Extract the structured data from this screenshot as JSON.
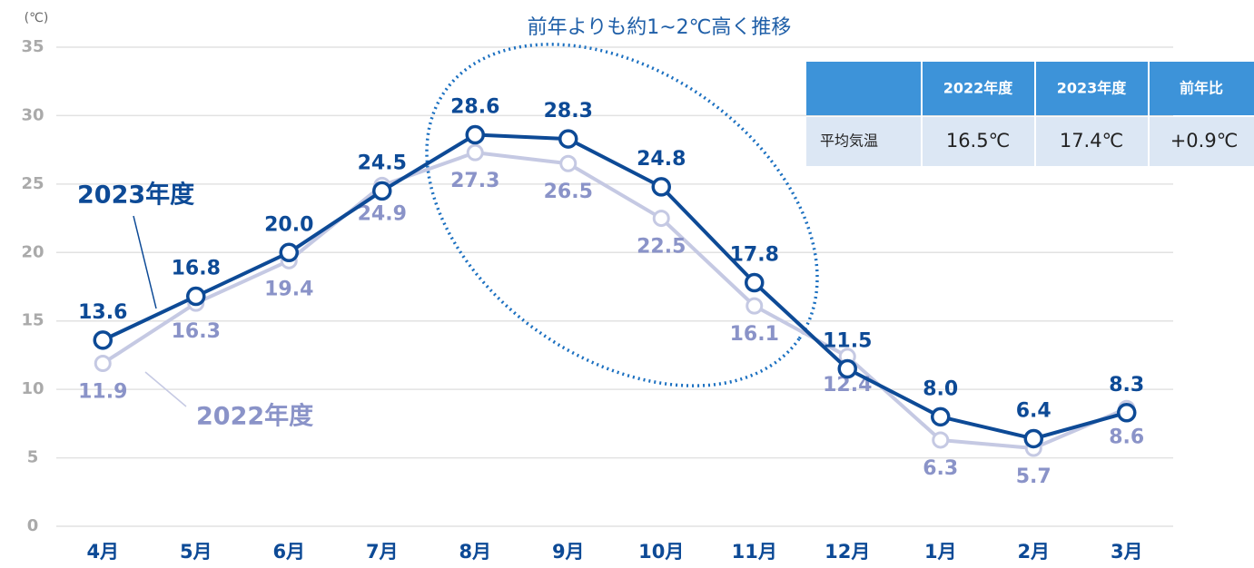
{
  "chart_data": {
    "type": "line",
    "title": "前年よりも約1~2℃高く推移",
    "y_label": "(℃)",
    "categories": [
      "4月",
      "5月",
      "6月",
      "7月",
      "8月",
      "9月",
      "10月",
      "11月",
      "12月",
      "1月",
      "2月",
      "3月"
    ],
    "series": [
      {
        "name": "2023年度",
        "color": "#0d4a96",
        "values": [
          13.6,
          16.8,
          20.0,
          24.5,
          28.6,
          28.3,
          24.8,
          17.8,
          11.5,
          8.0,
          6.4,
          8.3
        ],
        "value_labels": [
          "13.6",
          "16.8",
          "20.0",
          "24.5",
          "28.6",
          "28.3",
          "24.8",
          "17.8",
          "11.5",
          "8.0",
          "6.4",
          "8.3"
        ]
      },
      {
        "name": "2022年度",
        "color": "#c5c9e3",
        "label_color": "#8a93c8",
        "values": [
          11.9,
          16.3,
          19.4,
          24.9,
          27.3,
          26.5,
          22.5,
          16.1,
          12.4,
          6.3,
          5.7,
          8.6
        ],
        "value_labels": [
          "11.9",
          "16.3",
          "19.4",
          "24.9",
          "27.3",
          "26.5",
          "22.5",
          "16.1",
          "12.4",
          "6.3",
          "5.7",
          "8.6"
        ]
      }
    ],
    "ylim": [
      0,
      35
    ],
    "yticks": [
      0,
      5,
      10,
      15,
      20,
      25,
      30,
      35
    ],
    "grid": true,
    "table": {
      "header": [
        "2022年度",
        "2023年度",
        "前年比"
      ],
      "row_label": "平均気温",
      "row": [
        "16.5℃",
        "17.4℃",
        "+0.9℃"
      ]
    }
  }
}
